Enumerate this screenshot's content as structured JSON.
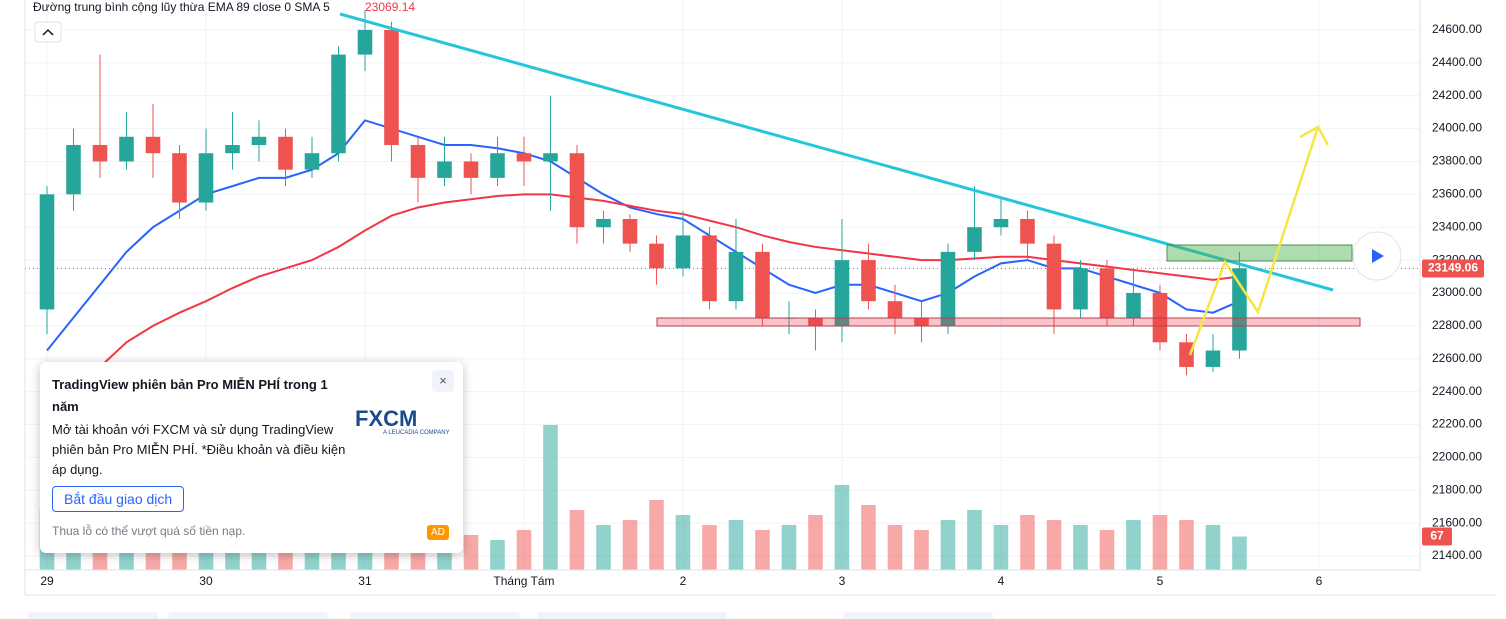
{
  "chart_data": {
    "type": "candlestick",
    "title": "Đường trung bình cộng lũy thừa EMA 89 close 0 SMA 5",
    "ema_value": 23069.14,
    "last_price": 23149.06,
    "up_color": "#26a69a",
    "down_color": "#ef5350",
    "x": [
      0,
      4,
      8,
      12,
      16,
      20,
      24,
      28,
      32,
      36,
      40,
      44,
      48,
      52,
      56,
      60,
      64,
      68,
      72,
      76,
      80,
      84,
      88,
      92,
      96,
      100,
      104,
      108,
      112,
      116,
      120,
      124,
      128,
      132,
      136,
      140,
      144,
      148,
      152,
      156,
      160,
      164,
      168,
      172,
      176,
      180
    ],
    "open": [
      22900,
      23600,
      23900,
      23800,
      23950,
      23850,
      23550,
      23850,
      23900,
      23950,
      23750,
      23850,
      24450,
      24600,
      23900,
      23700,
      23800,
      23700,
      23850,
      23800,
      23850,
      23400,
      23450,
      23300,
      23150,
      23350,
      22950,
      23250,
      22850,
      22850,
      22800,
      23200,
      22950,
      22850,
      22800,
      23250,
      23400,
      23450,
      23300,
      22900,
      23150,
      22850,
      23000,
      22700,
      22550,
      22650
    ],
    "high": [
      23650,
      24000,
      24450,
      24100,
      24150,
      23900,
      24000,
      24100,
      24050,
      24000,
      23950,
      24500,
      24720,
      24650,
      23950,
      23950,
      23850,
      23950,
      23950,
      24200,
      23900,
      23500,
      23480,
      23350,
      23500,
      23400,
      23450,
      23300,
      22950,
      22900,
      23450,
      23300,
      23050,
      22950,
      23300,
      23650,
      23580,
      23500,
      23350,
      23200,
      23200,
      23150,
      23050,
      22750,
      22750,
      23250
    ],
    "low": [
      22750,
      23500,
      23700,
      23750,
      23700,
      23450,
      23500,
      23750,
      23800,
      23650,
      23700,
      23800,
      24350,
      23800,
      23550,
      23650,
      23600,
      23650,
      23650,
      23500,
      23300,
      23300,
      23250,
      23050,
      23100,
      22900,
      22900,
      22800,
      22750,
      22650,
      22700,
      22900,
      22750,
      22700,
      22750,
      23200,
      23350,
      23200,
      22750,
      22850,
      22800,
      22800,
      22650,
      22500,
      22520,
      22600
    ],
    "close": [
      23600,
      23900,
      23800,
      23950,
      23850,
      23550,
      23850,
      23900,
      23950,
      23750,
      23850,
      24450,
      24600,
      23900,
      23700,
      23800,
      23700,
      23850,
      23800,
      23850,
      23400,
      23450,
      23300,
      23150,
      23350,
      22950,
      23250,
      22850,
      22850,
      22800,
      23200,
      22950,
      22850,
      22800,
      23250,
      23400,
      23450,
      23300,
      22900,
      23150,
      22850,
      23000,
      22700,
      22550,
      22650,
      23150
    ],
    "volume": [
      120,
      260,
      100,
      80,
      90,
      70,
      60,
      80,
      90,
      70,
      80,
      100,
      160,
      110,
      90,
      80,
      70,
      60,
      80,
      290,
      120,
      90,
      100,
      140,
      110,
      90,
      100,
      80,
      90,
      110,
      170,
      130,
      90,
      80,
      100,
      120,
      90,
      110,
      100,
      90,
      80,
      100,
      110,
      100,
      90,
      67
    ],
    "lines": [
      {
        "color": "#2962ff",
        "values": [
          22650,
          22850,
          23050,
          23250,
          23400,
          23500,
          23600,
          23650,
          23700,
          23700,
          23750,
          23850,
          24050,
          24000,
          23950,
          23900,
          23900,
          23880,
          23850,
          23800,
          23700,
          23600,
          23520,
          23480,
          23450,
          23350,
          23250,
          23150,
          23050,
          23000,
          23050,
          23050,
          23000,
          22950,
          23000,
          23100,
          23180,
          23200,
          23150,
          23150,
          23100,
          23050,
          23000,
          22900,
          22880,
          22950
        ]
      },
      {
        "color": "#f23645",
        "values": [
          22250,
          22400,
          22550,
          22700,
          22800,
          22880,
          22950,
          23030,
          23100,
          23150,
          23200,
          23280,
          23380,
          23470,
          23520,
          23550,
          23570,
          23590,
          23600,
          23600,
          23580,
          23560,
          23530,
          23500,
          23480,
          23440,
          23400,
          23350,
          23310,
          23280,
          23260,
          23240,
          23220,
          23200,
          23200,
          23210,
          23220,
          23220,
          23200,
          23180,
          23160,
          23140,
          23120,
          23100,
          23080,
          23100
        ]
      }
    ],
    "xlim": [
      -3.32,
      207.25
    ],
    "ylim": [
      21315,
      24782
    ],
    "xticks": [
      {
        "value": 0,
        "label": "29"
      },
      {
        "value": 24,
        "label": "30"
      },
      {
        "value": 48,
        "label": "31"
      },
      {
        "value": 72,
        "label": "Tháng Tám"
      },
      {
        "value": 96,
        "label": "2"
      },
      {
        "value": 120,
        "label": "3"
      },
      {
        "value": 144,
        "label": "4"
      },
      {
        "value": 168,
        "label": "5"
      },
      {
        "value": 192,
        "label": "6"
      }
    ],
    "yticks": [
      {
        "value": 21400,
        "label": "21400.00"
      },
      {
        "value": 21600,
        "label": "21600.00"
      },
      {
        "value": 21800,
        "label": "21800.00"
      },
      {
        "value": 22000,
        "label": "22000.00"
      },
      {
        "value": 22200,
        "label": "22200.00"
      },
      {
        "value": 22400,
        "label": "22400.00"
      },
      {
        "value": 22600,
        "label": "22600.00"
      },
      {
        "value": 22800,
        "label": "22800.00"
      },
      {
        "value": 23000,
        "label": "23000.00"
      },
      {
        "value": 23200,
        "label": "23200.00"
      },
      {
        "value": 23400,
        "label": "23400.00"
      },
      {
        "value": 23600,
        "label": "23600.00"
      },
      {
        "value": 23800,
        "label": "23800.00"
      },
      {
        "value": 24000,
        "label": "24000.00"
      },
      {
        "value": 24200,
        "label": "24200.00"
      },
      {
        "value": 24400,
        "label": "24400.00"
      },
      {
        "value": 24600,
        "label": "24600.00"
      }
    ],
    "grid": true
  },
  "ad": {
    "title": "TradingView phiên bản Pro MIỄN PHÍ trong 1 năm",
    "body": "Mở tài khoản với FXCM và sử dụng TradingView phiên bản Pro MIỄN PHÍ. *Điều khoản và điều kiện áp dụng.",
    "button": "Bắt đầu giao dịch",
    "disclaimer": "Thua lỗ có thể vượt quá số tiền nạp.",
    "badge": "AD",
    "brand": "FXCM",
    "brand_sub": "A LEUCADIA COMPANY"
  }
}
